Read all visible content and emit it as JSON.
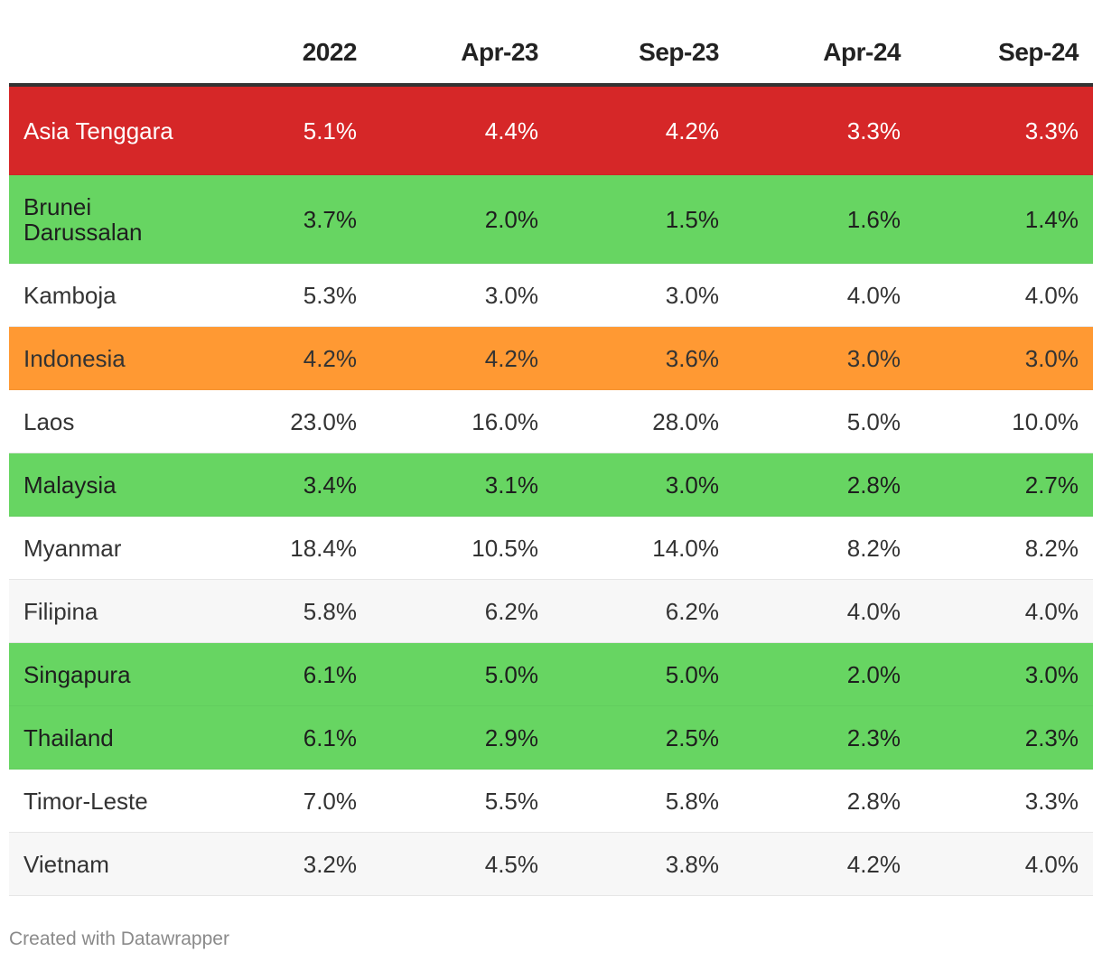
{
  "chart_data": {
    "type": "table",
    "columns": [
      "",
      "2022",
      "Apr-23",
      "Sep-23",
      "Apr-24",
      "Sep-24"
    ],
    "rows": [
      {
        "name": "Asia Tenggara",
        "values": [
          "5.1%",
          "4.4%",
          "4.2%",
          "3.3%",
          "3.3%"
        ],
        "bg": "#d62728",
        "fg": "#ffffff"
      },
      {
        "name": "Brunei Darussalan",
        "values": [
          "3.7%",
          "2.0%",
          "1.5%",
          "1.6%",
          "1.4%"
        ],
        "bg": "#67d562",
        "fg": "#1e1e1e"
      },
      {
        "name": "Kamboja",
        "values": [
          "5.3%",
          "3.0%",
          "3.0%",
          "4.0%",
          "4.0%"
        ],
        "bg": "#ffffff",
        "fg": "#333333"
      },
      {
        "name": "Indonesia",
        "values": [
          "4.2%",
          "4.2%",
          "3.6%",
          "3.0%",
          "3.0%"
        ],
        "bg": "#ff9933",
        "fg": "#333333"
      },
      {
        "name": "Laos",
        "values": [
          "23.0%",
          "16.0%",
          "28.0%",
          "5.0%",
          "10.0%"
        ],
        "bg": "#ffffff",
        "fg": "#333333"
      },
      {
        "name": "Malaysia",
        "values": [
          "3.4%",
          "3.1%",
          "3.0%",
          "2.8%",
          "2.7%"
        ],
        "bg": "#67d562",
        "fg": "#1e1e1e"
      },
      {
        "name": "Myanmar",
        "values": [
          "18.4%",
          "10.5%",
          "14.0%",
          "8.2%",
          "8.2%"
        ],
        "bg": "#ffffff",
        "fg": "#333333"
      },
      {
        "name": "Filipina",
        "values": [
          "5.8%",
          "6.2%",
          "6.2%",
          "4.0%",
          "4.0%"
        ],
        "bg": "#f7f7f7",
        "fg": "#333333"
      },
      {
        "name": "Singapura",
        "values": [
          "6.1%",
          "5.0%",
          "5.0%",
          "2.0%",
          "3.0%"
        ],
        "bg": "#67d562",
        "fg": "#1e1e1e"
      },
      {
        "name": "Thailand",
        "values": [
          "6.1%",
          "2.9%",
          "2.5%",
          "2.3%",
          "2.3%"
        ],
        "bg": "#67d562",
        "fg": "#1e1e1e"
      },
      {
        "name": "Timor-Leste",
        "values": [
          "7.0%",
          "5.5%",
          "5.8%",
          "2.8%",
          "3.3%"
        ],
        "bg": "#ffffff",
        "fg": "#333333"
      },
      {
        "name": "Vietnam",
        "values": [
          "3.2%",
          "4.5%",
          "3.8%",
          "4.2%",
          "4.0%"
        ],
        "bg": "#f7f7f7",
        "fg": "#333333"
      }
    ]
  },
  "footer": {
    "credit": "Created with Datawrapper"
  }
}
